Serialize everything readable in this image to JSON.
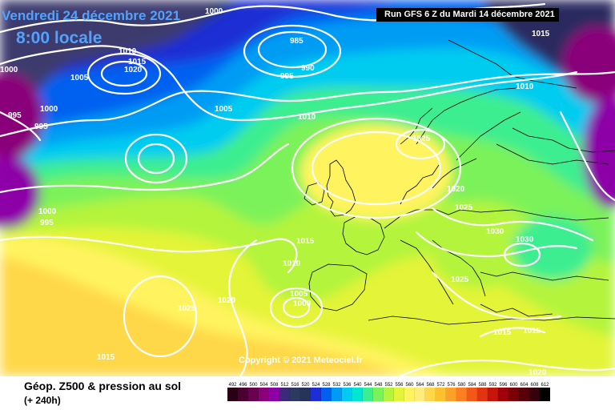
{
  "header": {
    "date": "Vendredi 24 décembre 2021",
    "hour": "8:00 locale",
    "run": "Run GFS 6 Z du Mardi 14 décembre 2021"
  },
  "copyright": "Copyright © 2021 Meteociel.fr",
  "parameter": {
    "title": "Géop. Z500 & pression au sol",
    "lead": "(+ 240h)"
  },
  "legend": {
    "values": [
      "492",
      "496",
      "500",
      "504",
      "508",
      "512",
      "516",
      "520",
      "524",
      "528",
      "532",
      "536",
      "540",
      "544",
      "548",
      "552",
      "556",
      "560",
      "564",
      "568",
      "572",
      "576",
      "580",
      "584",
      "588",
      "592",
      "596",
      "600",
      "604",
      "608",
      "612"
    ],
    "colors": [
      "#2b0014",
      "#4a0030",
      "#6a0050",
      "#8a007a",
      "#8d00a8",
      "#3c2a78",
      "#2a3a60",
      "#26345c",
      "#1c2ed4",
      "#0060f0",
      "#009cf4",
      "#00ccf0",
      "#00e6d0",
      "#3cee90",
      "#7cf25a",
      "#b4f43c",
      "#e4f438",
      "#fff45e",
      "#ffec7a",
      "#ffd84a",
      "#ffbf2e",
      "#ffa028",
      "#ff7e22",
      "#f45818",
      "#e03412",
      "#c8140e",
      "#a0000a",
      "#7a0008",
      "#58000a",
      "#36000a",
      "#000000"
    ]
  },
  "map": {
    "isobar_labels": [
      "1000",
      "985",
      "1015",
      "1010",
      "1015",
      "1020",
      "990",
      "1005",
      "995",
      "1000",
      "1005",
      "1010",
      "995",
      "1000",
      "995",
      "1010",
      "1025",
      "1020",
      "1000",
      "995",
      "1025",
      "1015",
      "1030",
      "1030",
      "1010",
      "1025",
      "1005",
      "1000",
      "1025",
      "1020",
      "1015",
      "1015",
      "1015",
      "1020"
    ]
  }
}
